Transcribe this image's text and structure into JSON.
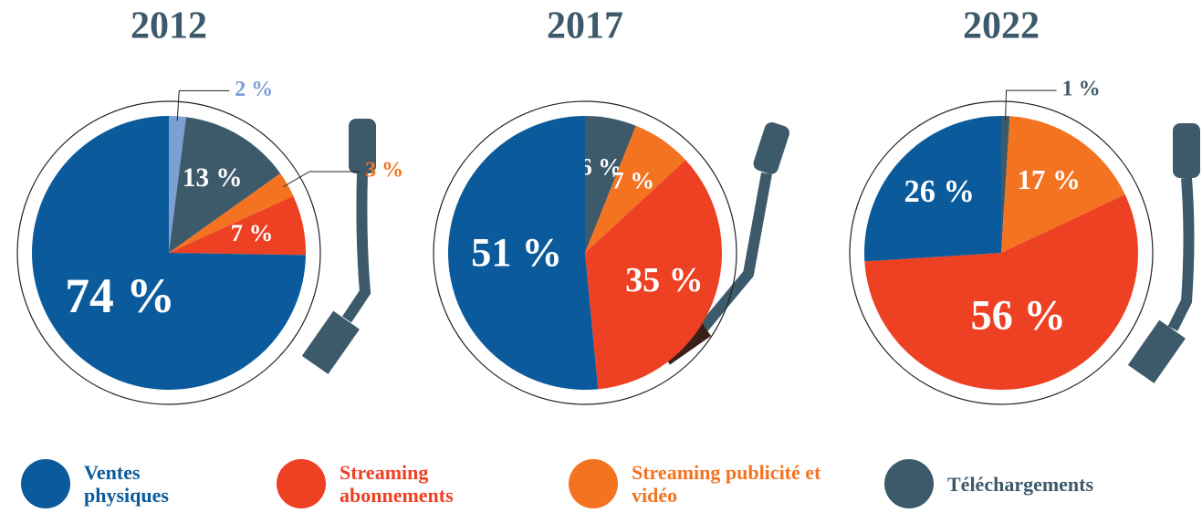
{
  "chart_data": [
    {
      "type": "pie",
      "title": "2012",
      "categories": [
        null,
        "Téléchargements",
        "Streaming publicité et vidéo",
        "Streaming abonnements",
        "Ventes physiques"
      ],
      "values": [
        2,
        13,
        3,
        7,
        74
      ],
      "value_labels": [
        "2 %",
        "13 %",
        "3 %",
        "7 %",
        "74 %"
      ],
      "colors": [
        "#7c9fd4",
        "#3d5a6b",
        "#f47321",
        "#ee4023",
        "#0a5a9c"
      ]
    },
    {
      "type": "pie",
      "title": "2017",
      "categories": [
        "Téléchargements",
        "Streaming publicité et vidéo",
        "Streaming abonnements",
        "Ventes physiques"
      ],
      "values": [
        6,
        7,
        35,
        51
      ],
      "value_labels": [
        "6 %",
        "7 %",
        "35 %",
        "51 %"
      ],
      "colors": [
        "#3d5a6b",
        "#f47321",
        "#ee4023",
        "#0a5a9c"
      ]
    },
    {
      "type": "pie",
      "title": "2022",
      "categories": [
        "Téléchargements",
        "Streaming publicité et vidéo",
        "Streaming abonnements",
        "Ventes physiques"
      ],
      "values": [
        1,
        17,
        56,
        26
      ],
      "value_labels": [
        "1 %",
        "17 %",
        "56 %",
        "26 %"
      ],
      "colors": [
        "#3d5a6b",
        "#f47321",
        "#ee4023",
        "#0a5a9c"
      ]
    }
  ],
  "legend": [
    {
      "name": "Ventes physiques",
      "color": "#0a5a9c"
    },
    {
      "name": "Streaming abonnements",
      "color": "#ee4023"
    },
    {
      "name": "Streaming publicité et vidéo",
      "color": "#f47321"
    },
    {
      "name": "Téléchargements",
      "color": "#3d5a6b"
    }
  ]
}
